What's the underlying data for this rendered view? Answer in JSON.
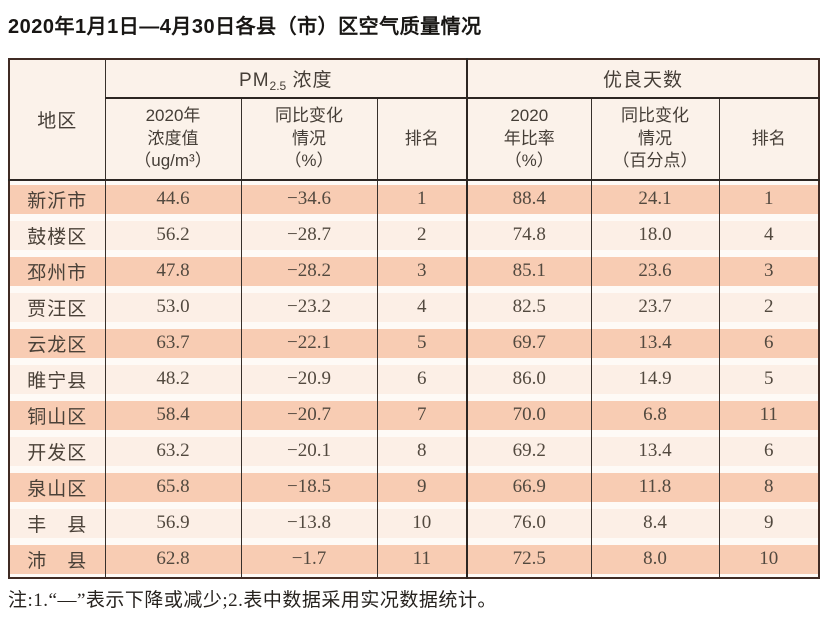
{
  "page": {
    "title": "2020年1月1日—4月30日各县（市）区空气质量情况",
    "footnote": "注:1.“—”表示下降或减少;2.表中数据采用实况数据统计。"
  },
  "table": {
    "region_header": "地区",
    "pm_group": {
      "prefix": "PM",
      "subscript": "2.5",
      "suffix": " 浓度"
    },
    "good_group_title": "优良天数",
    "subheaders": {
      "pm_value": "2020年\n浓度值\n（ug/m³）",
      "pm_change": "同比变化\n情况\n（%）",
      "pm_rank": "排名",
      "good_rate": "2020\n年比率\n（%）",
      "good_change": "同比变化\n情况\n（百分点）",
      "good_rank": "排名"
    },
    "rows": [
      {
        "region": "新沂市",
        "pm_value": "44.6",
        "pm_change": "−34.6",
        "pm_rank": "1",
        "good_rate": "88.4",
        "good_change": "24.1",
        "good_rank": "1"
      },
      {
        "region": "鼓楼区",
        "pm_value": "56.2",
        "pm_change": "−28.7",
        "pm_rank": "2",
        "good_rate": "74.8",
        "good_change": "18.0",
        "good_rank": "4"
      },
      {
        "region": "邳州市",
        "pm_value": "47.8",
        "pm_change": "−28.2",
        "pm_rank": "3",
        "good_rate": "85.1",
        "good_change": "23.6",
        "good_rank": "3"
      },
      {
        "region": "贾汪区",
        "pm_value": "53.0",
        "pm_change": "−23.2",
        "pm_rank": "4",
        "good_rate": "82.5",
        "good_change": "23.7",
        "good_rank": "2"
      },
      {
        "region": "云龙区",
        "pm_value": "63.7",
        "pm_change": "−22.1",
        "pm_rank": "5",
        "good_rate": "69.7",
        "good_change": "13.4",
        "good_rank": "6"
      },
      {
        "region": "睢宁县",
        "pm_value": "48.2",
        "pm_change": "−20.9",
        "pm_rank": "6",
        "good_rate": "86.0",
        "good_change": "14.9",
        "good_rank": "5"
      },
      {
        "region": "铜山区",
        "pm_value": "58.4",
        "pm_change": "−20.7",
        "pm_rank": "7",
        "good_rate": "70.0",
        "good_change": "6.8",
        "good_rank": "11"
      },
      {
        "region": "开发区",
        "pm_value": "63.2",
        "pm_change": "−20.1",
        "pm_rank": "8",
        "good_rate": "69.2",
        "good_change": "13.4",
        "good_rank": "6"
      },
      {
        "region": "泉山区",
        "pm_value": "65.8",
        "pm_change": "−18.5",
        "pm_rank": "9",
        "good_rate": "66.9",
        "good_change": "11.8",
        "good_rank": "8"
      },
      {
        "region": "丰　县",
        "pm_value": "56.9",
        "pm_change": "−13.8",
        "pm_rank": "10",
        "good_rate": "76.0",
        "good_change": "8.4",
        "good_rank": "9"
      },
      {
        "region": "沛　县",
        "pm_value": "62.8",
        "pm_change": "−1.7",
        "pm_rank": "11",
        "good_rate": "72.5",
        "good_change": "8.0",
        "good_rank": "10"
      }
    ]
  },
  "colors": {
    "row_odd_band": "#f8ccb3",
    "row_even_band": "#fcefe6",
    "row_gap": "#fefaf6",
    "header_bg": "#fbf2ea",
    "outer_border": "#402b24",
    "grid_line": "#37302b",
    "title_text": "#181614",
    "cell_text": "#52493f"
  }
}
